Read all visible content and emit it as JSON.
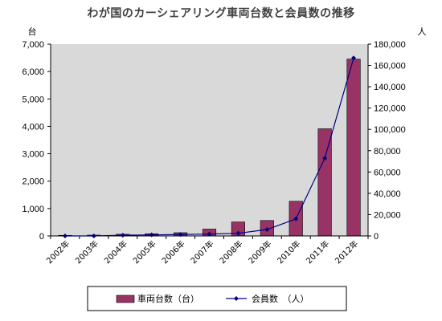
{
  "chart_data": {
    "type": "bar",
    "title": "わが国のカーシェアリング車両台数と会員数の推移",
    "categories": [
      "2002年",
      "2003年",
      "2004年",
      "2005年",
      "2006年",
      "2007年",
      "2008年",
      "2009年",
      "2010年",
      "2011年",
      "2012年"
    ],
    "series": [
      {
        "name": "車両台数（台）",
        "type": "bar",
        "axis": "left",
        "color": "#993366",
        "values": [
          21,
          30,
          60,
          80,
          118,
          250,
          510,
          563,
          1265,
          3911,
          6452
        ]
      },
      {
        "name": "会員数　（人）",
        "type": "line",
        "axis": "right",
        "color": "#000080",
        "values": [
          0,
          0,
          700,
          1000,
          1300,
          1800,
          2500,
          6000,
          16000,
          73000,
          167000
        ]
      }
    ],
    "left_axis": {
      "unit": "台",
      "ylim": [
        0,
        7000
      ],
      "ticks": [
        "0",
        "1,000",
        "2,000",
        "3,000",
        "4,000",
        "5,000",
        "6,000",
        "7,000"
      ]
    },
    "right_axis": {
      "unit": "人",
      "ylim": [
        0,
        180000
      ],
      "ticks": [
        "0",
        "20,000",
        "40,000",
        "60,000",
        "80,000",
        "100,000",
        "120,000",
        "140,000",
        "160,000",
        "180,000"
      ]
    },
    "plot_background": "#d9d9d9",
    "legend_position": "bottom-center",
    "grid": false
  }
}
